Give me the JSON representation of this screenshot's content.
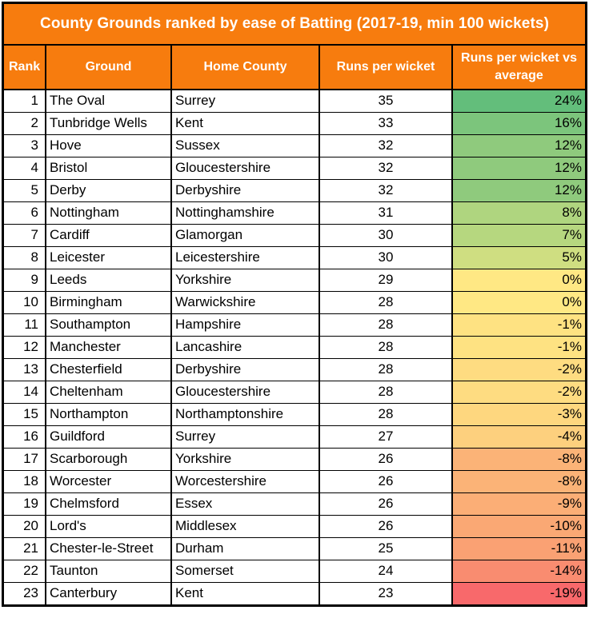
{
  "title": "County Grounds ranked by ease of Batting (2017-19, min 100 wickets)",
  "colors": {
    "accent_orange": "#F77C0E",
    "border_black": "#000000",
    "header_text": "#FFFFFF",
    "body_text": "#000000",
    "scale_max_green": "#63BE7B",
    "scale_mid_yellow": "#FFE884",
    "scale_min_red": "#F8696B"
  },
  "chart_data": {
    "type": "table",
    "title": "County Grounds ranked by ease of Batting (2017-19, min 100 wickets)",
    "columns": [
      "Rank",
      "Ground",
      "Home County",
      "Runs per wicket",
      "Runs per wicket vs average"
    ],
    "rows": [
      {
        "rank": "1",
        "ground": "The Oval",
        "county": "Surrey",
        "rpw": "35",
        "vs_avg": "24%",
        "vs_avg_color": "#63BE7B"
      },
      {
        "rank": "2",
        "ground": "Tunbridge Wells",
        "county": "Kent",
        "rpw": "33",
        "vs_avg": "16%",
        "vs_avg_color": "#7CC57C"
      },
      {
        "rank": "3",
        "ground": "Hove",
        "county": "Sussex",
        "rpw": "32",
        "vs_avg": "12%",
        "vs_avg_color": "#8FCA7D"
      },
      {
        "rank": "4",
        "ground": "Bristol",
        "county": "Gloucestershire",
        "rpw": "32",
        "vs_avg": "12%",
        "vs_avg_color": "#8FCA7D"
      },
      {
        "rank": "5",
        "ground": "Derby",
        "county": "Derbyshire",
        "rpw": "32",
        "vs_avg": "12%",
        "vs_avg_color": "#8FCA7D"
      },
      {
        "rank": "6",
        "ground": "Nottingham",
        "county": "Nottinghamshire",
        "rpw": "31",
        "vs_avg": "8%",
        "vs_avg_color": "#AFD57F"
      },
      {
        "rank": "7",
        "ground": "Cardiff",
        "county": "Glamorgan",
        "rpw": "30",
        "vs_avg": "7%",
        "vs_avg_color": "#B6D77F"
      },
      {
        "rank": "8",
        "ground": "Leicester",
        "county": "Leicestershire",
        "rpw": "30",
        "vs_avg": "5%",
        "vs_avg_color": "#CFDE81"
      },
      {
        "rank": "9",
        "ground": "Leeds",
        "county": "Yorkshire",
        "rpw": "29",
        "vs_avg": "0%",
        "vs_avg_color": "#FFE884"
      },
      {
        "rank": "10",
        "ground": "Birmingham",
        "county": "Warwickshire",
        "rpw": "28",
        "vs_avg": "0%",
        "vs_avg_color": "#FFE884"
      },
      {
        "rank": "11",
        "ground": "Southampton",
        "county": "Hampshire",
        "rpw": "28",
        "vs_avg": "-1%",
        "vs_avg_color": "#FEE282"
      },
      {
        "rank": "12",
        "ground": "Manchester",
        "county": "Lancashire",
        "rpw": "28",
        "vs_avg": "-1%",
        "vs_avg_color": "#FEE282"
      },
      {
        "rank": "13",
        "ground": "Chesterfield",
        "county": "Derbyshire",
        "rpw": "28",
        "vs_avg": "-2%",
        "vs_avg_color": "#FEDC81"
      },
      {
        "rank": "14",
        "ground": "Cheltenham",
        "county": "Gloucestershire",
        "rpw": "28",
        "vs_avg": "-2%",
        "vs_avg_color": "#FEDC81"
      },
      {
        "rank": "15",
        "ground": "Northampton",
        "county": "Northamptonshire",
        "rpw": "28",
        "vs_avg": "-3%",
        "vs_avg_color": "#FED77F"
      },
      {
        "rank": "16",
        "ground": "Guildford",
        "county": "Surrey",
        "rpw": "27",
        "vs_avg": "-4%",
        "vs_avg_color": "#FDD07E"
      },
      {
        "rank": "17",
        "ground": "Scarborough",
        "county": "Yorkshire",
        "rpw": "26",
        "vs_avg": "-8%",
        "vs_avg_color": "#FBB377"
      },
      {
        "rank": "18",
        "ground": "Worcester",
        "county": "Worcestershire",
        "rpw": "26",
        "vs_avg": "-8%",
        "vs_avg_color": "#FBB377"
      },
      {
        "rank": "19",
        "ground": "Chelmsford",
        "county": "Essex",
        "rpw": "26",
        "vs_avg": "-9%",
        "vs_avg_color": "#FBAE76"
      },
      {
        "rank": "20",
        "ground": "Lord's",
        "county": "Middlesex",
        "rpw": "26",
        "vs_avg": "-10%",
        "vs_avg_color": "#FAA874"
      },
      {
        "rank": "21",
        "ground": "Chester-le-Street",
        "county": "Durham",
        "rpw": "25",
        "vs_avg": "-11%",
        "vs_avg_color": "#FAA173"
      },
      {
        "rank": "22",
        "ground": "Taunton",
        "county": "Somerset",
        "rpw": "24",
        "vs_avg": "-14%",
        "vs_avg_color": "#F98C70"
      },
      {
        "rank": "23",
        "ground": "Canterbury",
        "county": "Kent",
        "rpw": "23",
        "vs_avg": "-19%",
        "vs_avg_color": "#F8696B"
      }
    ]
  }
}
